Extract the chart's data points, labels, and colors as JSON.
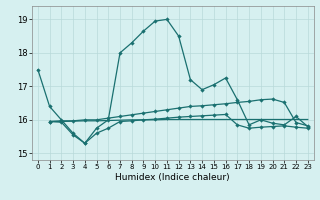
{
  "xlabel": "Humidex (Indice chaleur)",
  "bg_color": "#d6f0f0",
  "grid_color": "#b8dada",
  "line_color": "#1a7070",
  "ylim": [
    14.8,
    19.4
  ],
  "xlim": [
    -0.5,
    23.5
  ],
  "yticks": [
    15,
    16,
    17,
    18,
    19
  ],
  "xticks": [
    0,
    1,
    2,
    3,
    4,
    5,
    6,
    7,
    8,
    9,
    10,
    11,
    12,
    13,
    14,
    15,
    16,
    17,
    18,
    19,
    20,
    21,
    22,
    23
  ],
  "line_main_x": [
    0,
    1,
    2,
    3,
    4,
    5,
    6,
    7,
    8,
    9,
    10,
    11,
    12,
    13,
    14,
    15,
    16,
    17,
    18,
    19,
    20,
    21,
    22,
    23
  ],
  "line_main_y": [
    17.5,
    16.4,
    16.0,
    15.6,
    15.3,
    15.75,
    16.0,
    18.0,
    18.3,
    18.65,
    18.95,
    19.0,
    18.5,
    17.2,
    16.9,
    17.05,
    17.25,
    16.6,
    15.85,
    16.0,
    15.9,
    15.85,
    16.1,
    15.8
  ],
  "line_upper_x": [
    1,
    2,
    3,
    4,
    5,
    6,
    7,
    8,
    9,
    10,
    11,
    12,
    13,
    14,
    15,
    16,
    17,
    18,
    19,
    20,
    21,
    22,
    23
  ],
  "line_upper_y": [
    15.95,
    15.97,
    15.97,
    16.0,
    16.0,
    16.05,
    16.1,
    16.15,
    16.2,
    16.25,
    16.3,
    16.35,
    16.4,
    16.42,
    16.45,
    16.48,
    16.52,
    16.55,
    16.6,
    16.62,
    16.52,
    15.92,
    15.82
  ],
  "line_flat_x": [
    1,
    2,
    3,
    4,
    5,
    6,
    7,
    8,
    9,
    10,
    11,
    12,
    13,
    14,
    15,
    16,
    17,
    18,
    19,
    20,
    21,
    22,
    23
  ],
  "line_flat_y": [
    15.95,
    15.95,
    15.96,
    15.97,
    15.97,
    15.98,
    15.99,
    16.0,
    16.0,
    16.0,
    16.01,
    16.01,
    16.01,
    16.01,
    16.01,
    16.01,
    16.01,
    16.01,
    16.01,
    16.01,
    16.01,
    16.01,
    16.01
  ],
  "line_lower_x": [
    1,
    2,
    3,
    4,
    5,
    6,
    7,
    8,
    9,
    10,
    11,
    12,
    13,
    14,
    15,
    16,
    17,
    18,
    19,
    20,
    21,
    22,
    23
  ],
  "line_lower_y": [
    15.95,
    15.93,
    15.55,
    15.3,
    15.6,
    15.75,
    15.95,
    15.97,
    16.0,
    16.02,
    16.05,
    16.08,
    16.1,
    16.12,
    16.14,
    16.16,
    15.85,
    15.75,
    15.78,
    15.8,
    15.82,
    15.78,
    15.75
  ]
}
